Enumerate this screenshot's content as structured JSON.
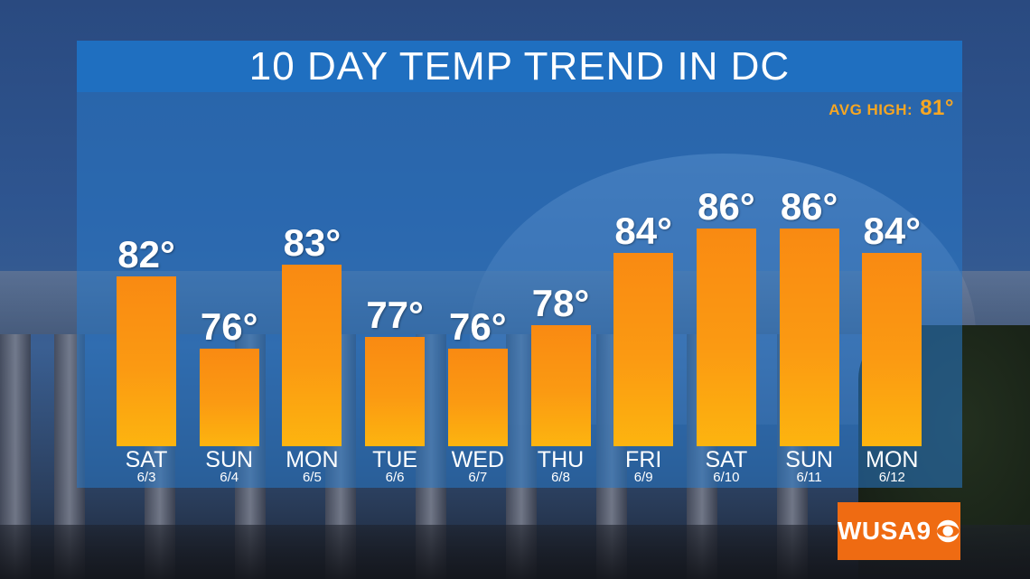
{
  "chart_data": {
    "type": "bar",
    "title": "10 DAY TEMP TREND IN DC",
    "annotation": {
      "label": "AVG HIGH:",
      "value": "81°"
    },
    "categories": [
      "SAT",
      "SUN",
      "MON",
      "TUE",
      "WED",
      "THU",
      "FRI",
      "SAT",
      "SUN",
      "MON"
    ],
    "dates": [
      "6/3",
      "6/4",
      "6/5",
      "6/6",
      "6/7",
      "6/8",
      "6/9",
      "6/10",
      "6/11",
      "6/12"
    ],
    "values": [
      82,
      76,
      83,
      77,
      76,
      78,
      84,
      86,
      86,
      84
    ],
    "value_labels": [
      "82°",
      "76°",
      "83°",
      "77°",
      "76°",
      "78°",
      "84°",
      "86°",
      "86°",
      "84°"
    ],
    "units": "°F",
    "grid": false,
    "colors": {
      "bar": "#fb9a12",
      "title_bar": "#1f6fc0",
      "avg_high": "#f5a623"
    }
  },
  "logo": {
    "text": "WUSA9",
    "brand_color": "#ef6b12"
  }
}
